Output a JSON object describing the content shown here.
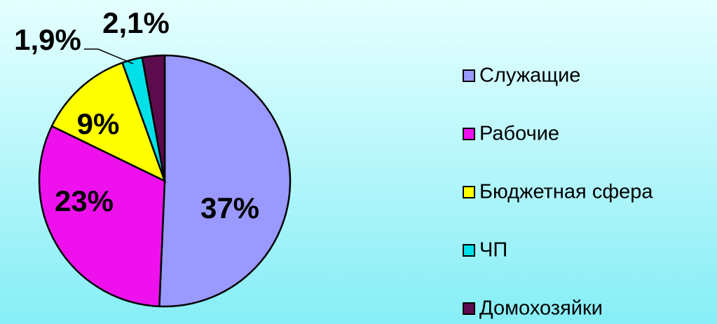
{
  "chart_data": {
    "type": "pie",
    "categories": [
      "Служащие",
      "Рабочие",
      "Бюджетная сфера",
      "ЧП",
      "Домохозяйки"
    ],
    "values": [
      37,
      23,
      9,
      1.9,
      2.1
    ],
    "value_labels": [
      "37%",
      "23%",
      "9%",
      "1,9%",
      "2,1%"
    ],
    "colors": [
      "#9999ff",
      "#ee11ee",
      "#ffff00",
      "#00e0e8",
      "#5c0b4c"
    ],
    "legend": "right"
  }
}
